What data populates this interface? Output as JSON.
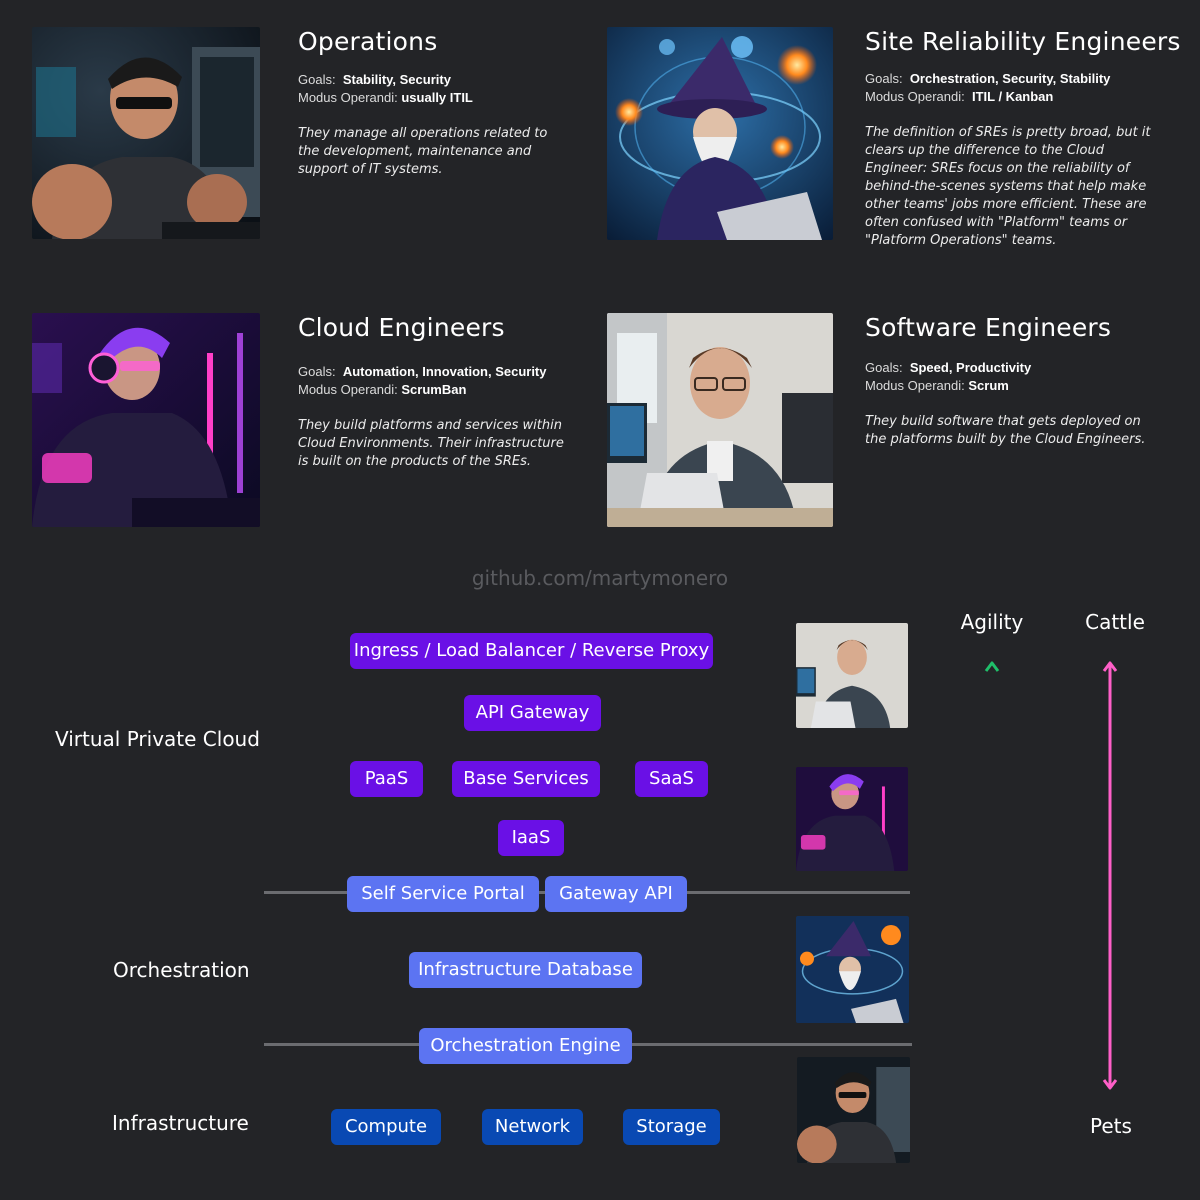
{
  "personas": [
    {
      "title": "Operations",
      "goals_label": "Goals:",
      "goals": "Stability, Security",
      "modus_label": "Modus Operandi:",
      "modus": "usually ITIL",
      "description": "They manage all operations related to the development, maintenance and support of IT systems."
    },
    {
      "title": "Site Reliability Engineers",
      "goals_label": "Goals:",
      "goals": "Orchestration, Security, Stability",
      "modus_label": "Modus Operandi:",
      "modus": "ITIL / Kanban",
      "description": "The definition of SREs is pretty broad, but it clears up the difference to the Cloud Engineer: SREs focus on the reliability of behind-the-scenes systems that help make other teams' jobs more efficient. These are often confused with \"Platform\" teams or \"Platform Operations\" teams."
    },
    {
      "title": "Cloud Engineers",
      "goals_label": "Goals:",
      "goals": "Automation, Innovation, Security",
      "modus_label": "Modus Operandi:",
      "modus": "ScrumBan",
      "description": "They build platforms and services within Cloud Environments. Their infrastructure is built on the products of the SREs."
    },
    {
      "title": "Software Engineers",
      "goals_label": "Goals:",
      "goals": "Speed, Productivity",
      "modus_label": "Modus Operandi:",
      "modus": "Scrum",
      "description": "They build software that gets deployed on the platforms built by the Cloud Engineers."
    }
  ],
  "watermark": "github.com/martymonero",
  "layers": {
    "vpc": "Virtual Private Cloud",
    "orchestration": "Orchestration",
    "infrastructure": "Infrastructure"
  },
  "boxes": {
    "ingress": "Ingress / Load Balancer / Reverse Proxy",
    "api_gateway": "API Gateway",
    "paas": "PaaS",
    "base_services": "Base Services",
    "saas": "SaaS",
    "iaas": "IaaS",
    "self_service_portal": "Self Service Portal",
    "gateway_api": "Gateway API",
    "infra_db": "Infrastructure Database",
    "orch_engine": "Orchestration Engine",
    "compute": "Compute",
    "network": "Network",
    "storage": "Storage"
  },
  "axes": {
    "agility": "Agility",
    "cattle": "Cattle",
    "pets": "Pets"
  },
  "colors": {
    "vpc_box": "#6a10e6",
    "orchestration_box": "#5c74f2",
    "infrastructure_box": "#0949b3",
    "agility_arrow_top": "#1fbf6a",
    "agility_arrow_bottom": "#7a4cf0",
    "cattle_pets_arrow": "#ff5fc8"
  }
}
